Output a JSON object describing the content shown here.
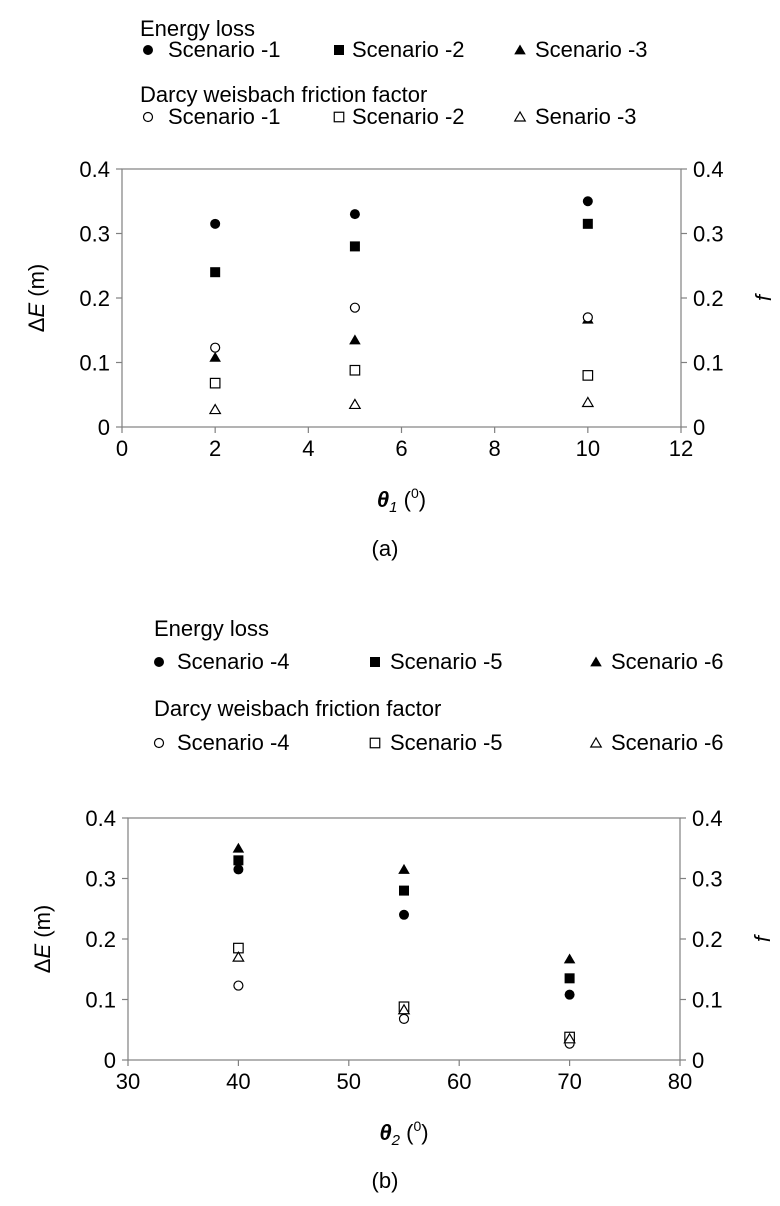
{
  "chart_data": [
    {
      "type": "scatter",
      "panel_label": "(a)",
      "x_label": "θ1 (0)",
      "x_label_symbol": "θ",
      "x_label_subscript": "1",
      "x_label_unit_open": "(",
      "x_label_unit_sup": "0",
      "x_label_unit_close": ")",
      "y_left_label": "ΔE (m)",
      "y_left_label_prefix": "Δ",
      "y_left_label_var": "E",
      "y_left_label_unit": " (m)",
      "y_right_label": "f",
      "xlim": [
        0,
        12
      ],
      "ylim": [
        0,
        0.4
      ],
      "x_ticks": [
        "0",
        "2",
        "4",
        "6",
        "8",
        "10",
        "12"
      ],
      "y_ticks": [
        "0",
        "0.1",
        "0.2",
        "0.3",
        "0.4"
      ],
      "legend": {
        "group1_title": "Energy loss",
        "group1": [
          "Scenario -1",
          "Scenario -2",
          "Scenario -3"
        ],
        "group2_title": "Darcy weisbach friction factor",
        "group2": [
          "Scenario -1",
          "Scenario -2",
          "Senario -3"
        ]
      },
      "series": [
        {
          "name": "Scenario -1",
          "group": "Energy loss",
          "marker": "circle",
          "filled": true,
          "x": [
            2,
            5,
            10
          ],
          "y": [
            0.315,
            0.33,
            0.35
          ]
        },
        {
          "name": "Scenario -2",
          "group": "Energy loss",
          "marker": "square",
          "filled": true,
          "x": [
            2,
            5,
            10
          ],
          "y": [
            0.24,
            0.28,
            0.315
          ]
        },
        {
          "name": "Scenario -3",
          "group": "Energy loss",
          "marker": "triangle",
          "filled": true,
          "x": [
            2,
            5,
            10
          ],
          "y": [
            0.108,
            0.135,
            0.167
          ]
        },
        {
          "name": "Scenario -1",
          "group": "Darcy weisbach friction factor",
          "marker": "circle",
          "filled": false,
          "x": [
            2,
            5,
            10
          ],
          "y": [
            0.123,
            0.185,
            0.17
          ]
        },
        {
          "name": "Scenario -2",
          "group": "Darcy weisbach friction factor",
          "marker": "square",
          "filled": false,
          "x": [
            2,
            5,
            10
          ],
          "y": [
            0.068,
            0.088,
            0.08
          ]
        },
        {
          "name": "Senario -3",
          "group": "Darcy weisbach friction factor",
          "marker": "triangle",
          "filled": false,
          "x": [
            2,
            5,
            10
          ],
          "y": [
            0.027,
            0.035,
            0.038
          ]
        }
      ]
    },
    {
      "type": "scatter",
      "panel_label": "(b)",
      "x_label": "θ2 (0)",
      "x_label_symbol": "θ",
      "x_label_subscript": "2",
      "x_label_unit_open": "(",
      "x_label_unit_sup": "0",
      "x_label_unit_close": ")",
      "y_left_label": "ΔE (m)",
      "y_left_label_prefix": "Δ",
      "y_left_label_var": "E",
      "y_left_label_unit": " (m)",
      "y_right_label": "f",
      "xlim": [
        30,
        80
      ],
      "ylim": [
        0,
        0.4
      ],
      "x_ticks": [
        "30",
        "40",
        "50",
        "60",
        "70",
        "80"
      ],
      "y_ticks": [
        "0",
        "0.1",
        "0.2",
        "0.3",
        "0.4"
      ],
      "legend": {
        "group1_title": "Energy loss",
        "group1": [
          "Scenario -4",
          "Scenario -5",
          "Scenario -6"
        ],
        "group2_title": "Darcy weisbach friction factor",
        "group2": [
          "Scenario -4",
          "Scenario -5",
          "Scenario -6"
        ]
      },
      "series": [
        {
          "name": "Scenario -4",
          "group": "Energy loss",
          "marker": "circle",
          "filled": true,
          "x": [
            40,
            55,
            70
          ],
          "y": [
            0.315,
            0.24,
            0.108
          ]
        },
        {
          "name": "Scenario -5",
          "group": "Energy loss",
          "marker": "square",
          "filled": true,
          "x": [
            40,
            55,
            70
          ],
          "y": [
            0.33,
            0.28,
            0.135
          ]
        },
        {
          "name": "Scenario -6",
          "group": "Energy loss",
          "marker": "triangle",
          "filled": true,
          "x": [
            40,
            55,
            70
          ],
          "y": [
            0.35,
            0.315,
            0.167
          ]
        },
        {
          "name": "Scenario -4",
          "group": "Darcy weisbach friction factor",
          "marker": "circle",
          "filled": false,
          "x": [
            40,
            55,
            70
          ],
          "y": [
            0.123,
            0.068,
            0.027
          ]
        },
        {
          "name": "Scenario -5",
          "group": "Darcy weisbach friction factor",
          "marker": "square",
          "filled": false,
          "x": [
            40,
            55,
            70
          ],
          "y": [
            0.185,
            0.088,
            0.038
          ]
        },
        {
          "name": "Scenario -6",
          "group": "Darcy weisbach friction factor",
          "marker": "triangle",
          "filled": false,
          "x": [
            40,
            55,
            70
          ],
          "y": [
            0.17,
            0.083,
            0.035
          ]
        }
      ]
    }
  ]
}
